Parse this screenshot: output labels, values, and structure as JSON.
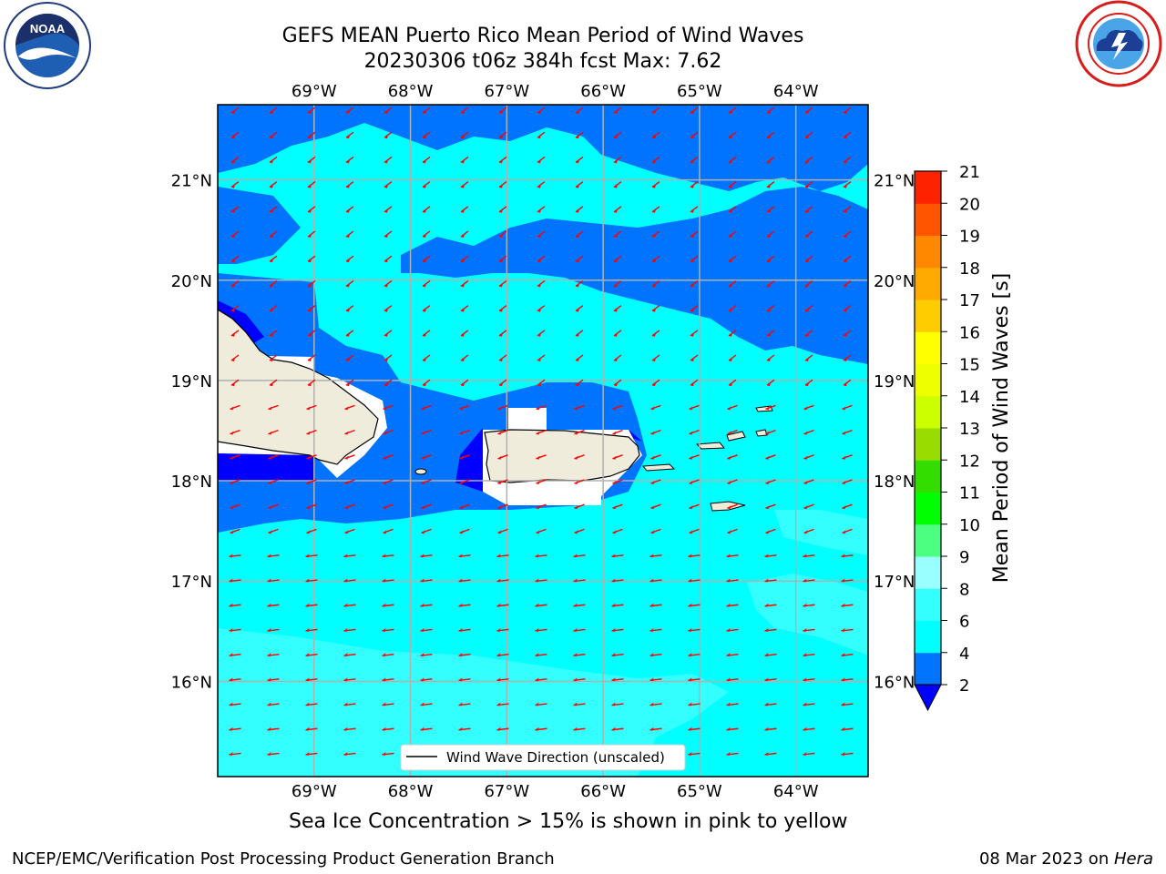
{
  "header": {
    "title_line1": "GEFS MEAN Puerto Rico Mean Period of Wind Waves",
    "title_line2": "20230306 t06z 384h fcst   Max: 7.62"
  },
  "logos": {
    "left": {
      "icon": "noaa-logo-icon",
      "text": "NOAA",
      "ring_text": "NATIONAL OCEANIC AND ATMOSPHERIC ADMINISTRATION · U.S. DEPARTMENT OF COMMERCE"
    },
    "right": {
      "icon": "nws-logo-icon",
      "ring_text": "NATIONAL WEATHER SERVICE"
    }
  },
  "map": {
    "lon_ticks": [
      "69°W",
      "68°W",
      "67°W",
      "66°W",
      "65°W",
      "64°W"
    ],
    "lat_ticks": [
      "21°N",
      "20°N",
      "19°N",
      "18°N",
      "17°N",
      "16°N"
    ],
    "lon_values": [
      -69,
      -68,
      -67,
      -66,
      -65,
      -64
    ],
    "lat_values": [
      21,
      20,
      19,
      18,
      17,
      16
    ],
    "extent": {
      "lon": [
        -70,
        -63.25
      ],
      "lat": [
        15.05,
        21.75
      ]
    },
    "land_color": "#efecdc",
    "arrow_color": "#ff0000",
    "grid": true
  },
  "legend": {
    "label": "Wind Wave Direction (unscaled)"
  },
  "colorbar": {
    "label": "Mean Period of Wind Waves [s]",
    "ticks": [
      "2",
      "4",
      "6",
      "8",
      "9",
      "10",
      "11",
      "12",
      "13",
      "14",
      "15",
      "16",
      "17",
      "18",
      "19",
      "20",
      "21"
    ],
    "colors": [
      "#0073ff",
      "#00ffff",
      "#33ffff",
      "#99ffff",
      "#4dff80",
      "#00ff00",
      "#33dd00",
      "#99dd00",
      "#ccff00",
      "#eeff00",
      "#ffff00",
      "#ffcc00",
      "#ffaa00",
      "#ff8800",
      "#ff5500",
      "#ff2200",
      "#ff0000"
    ],
    "under_color": "#0000ff"
  },
  "fields": {
    "levels": {
      "deep": "#0000ff",
      "mid": "#0073ff",
      "cyan": "#00ffff",
      "light": "#33ffff",
      "white": "#ffffff"
    }
  },
  "notes": {
    "sea_ice": "Sea Ice Concentration > 15% is shown in pink to yellow"
  },
  "footer": {
    "left": "NCEP/EMC/Verification Post Processing Product Generation Branch",
    "date": "08 Mar 2023 on ",
    "host": "Hera"
  }
}
